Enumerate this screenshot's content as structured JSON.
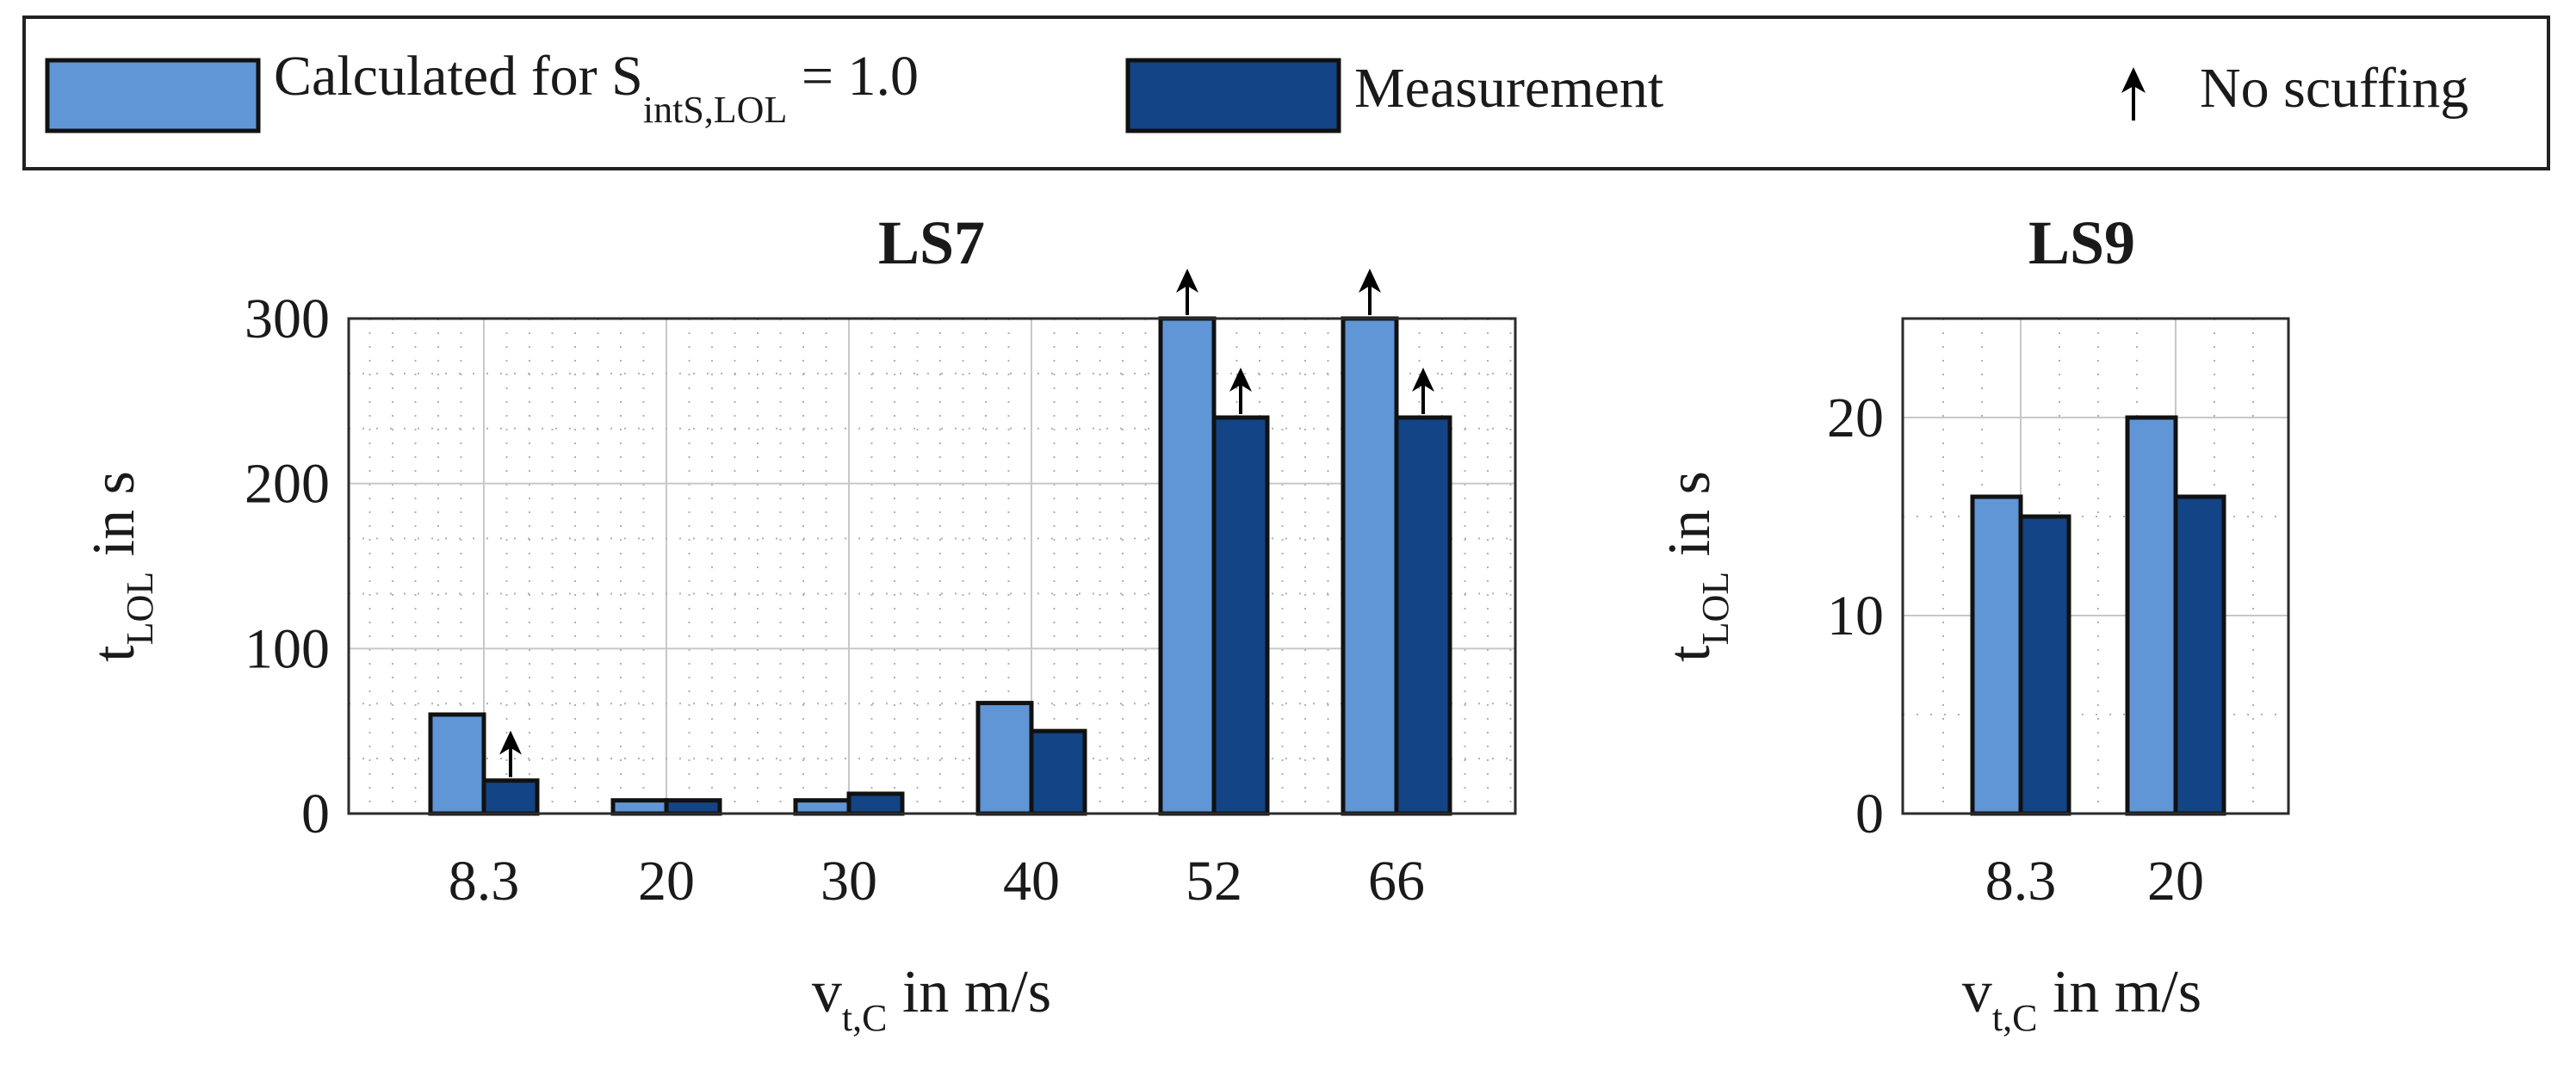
{
  "legend": {
    "calculated_label": "Calculated for S",
    "calculated_subscript": "intS,LOL",
    "calculated_suffix": " = 1.0",
    "measurement_label": "Measurement",
    "no_scuffing_label": "No scuffing",
    "colors": {
      "calculated": "#6096d6",
      "measurement": "#124486"
    }
  },
  "chart_data": [
    {
      "type": "bar",
      "title": "LS7",
      "categories": [
        "8.3",
        "20",
        "30",
        "40",
        "52",
        "66"
      ],
      "series": [
        {
          "name": "Calculated for S_intS,LOL = 1.0",
          "values": [
            60,
            8,
            8,
            67,
            300,
            300
          ],
          "no_scuffing": [
            false,
            false,
            false,
            false,
            true,
            true
          ]
        },
        {
          "name": "Measurement",
          "values": [
            20,
            8,
            12,
            50,
            240,
            240
          ],
          "no_scuffing": [
            true,
            false,
            false,
            false,
            true,
            true
          ]
        }
      ],
      "ylim": [
        0,
        300
      ],
      "yticks": [
        0,
        100,
        200,
        300
      ],
      "ylabel_main": "t",
      "ylabel_sub": "LOL",
      "ylabel_rest": " in s",
      "xlabel_main": "v",
      "xlabel_sub": "t,C",
      "xlabel_rest": " in m/s",
      "grid": true
    },
    {
      "type": "bar",
      "title": "LS9",
      "categories": [
        "8.3",
        "20"
      ],
      "series": [
        {
          "name": "Calculated for S_intS,LOL = 1.0",
          "values": [
            16,
            20
          ],
          "no_scuffing": [
            false,
            false
          ]
        },
        {
          "name": "Measurement",
          "values": [
            15,
            16
          ],
          "no_scuffing": [
            false,
            false
          ]
        }
      ],
      "ylim": [
        0,
        25
      ],
      "yticks": [
        0,
        10,
        20
      ],
      "ylabel_main": "t",
      "ylabel_sub": "LOL",
      "ylabel_rest": " in s",
      "xlabel_main": "v",
      "xlabel_sub": "t,C",
      "xlabel_rest": " in m/s",
      "grid": true
    }
  ]
}
